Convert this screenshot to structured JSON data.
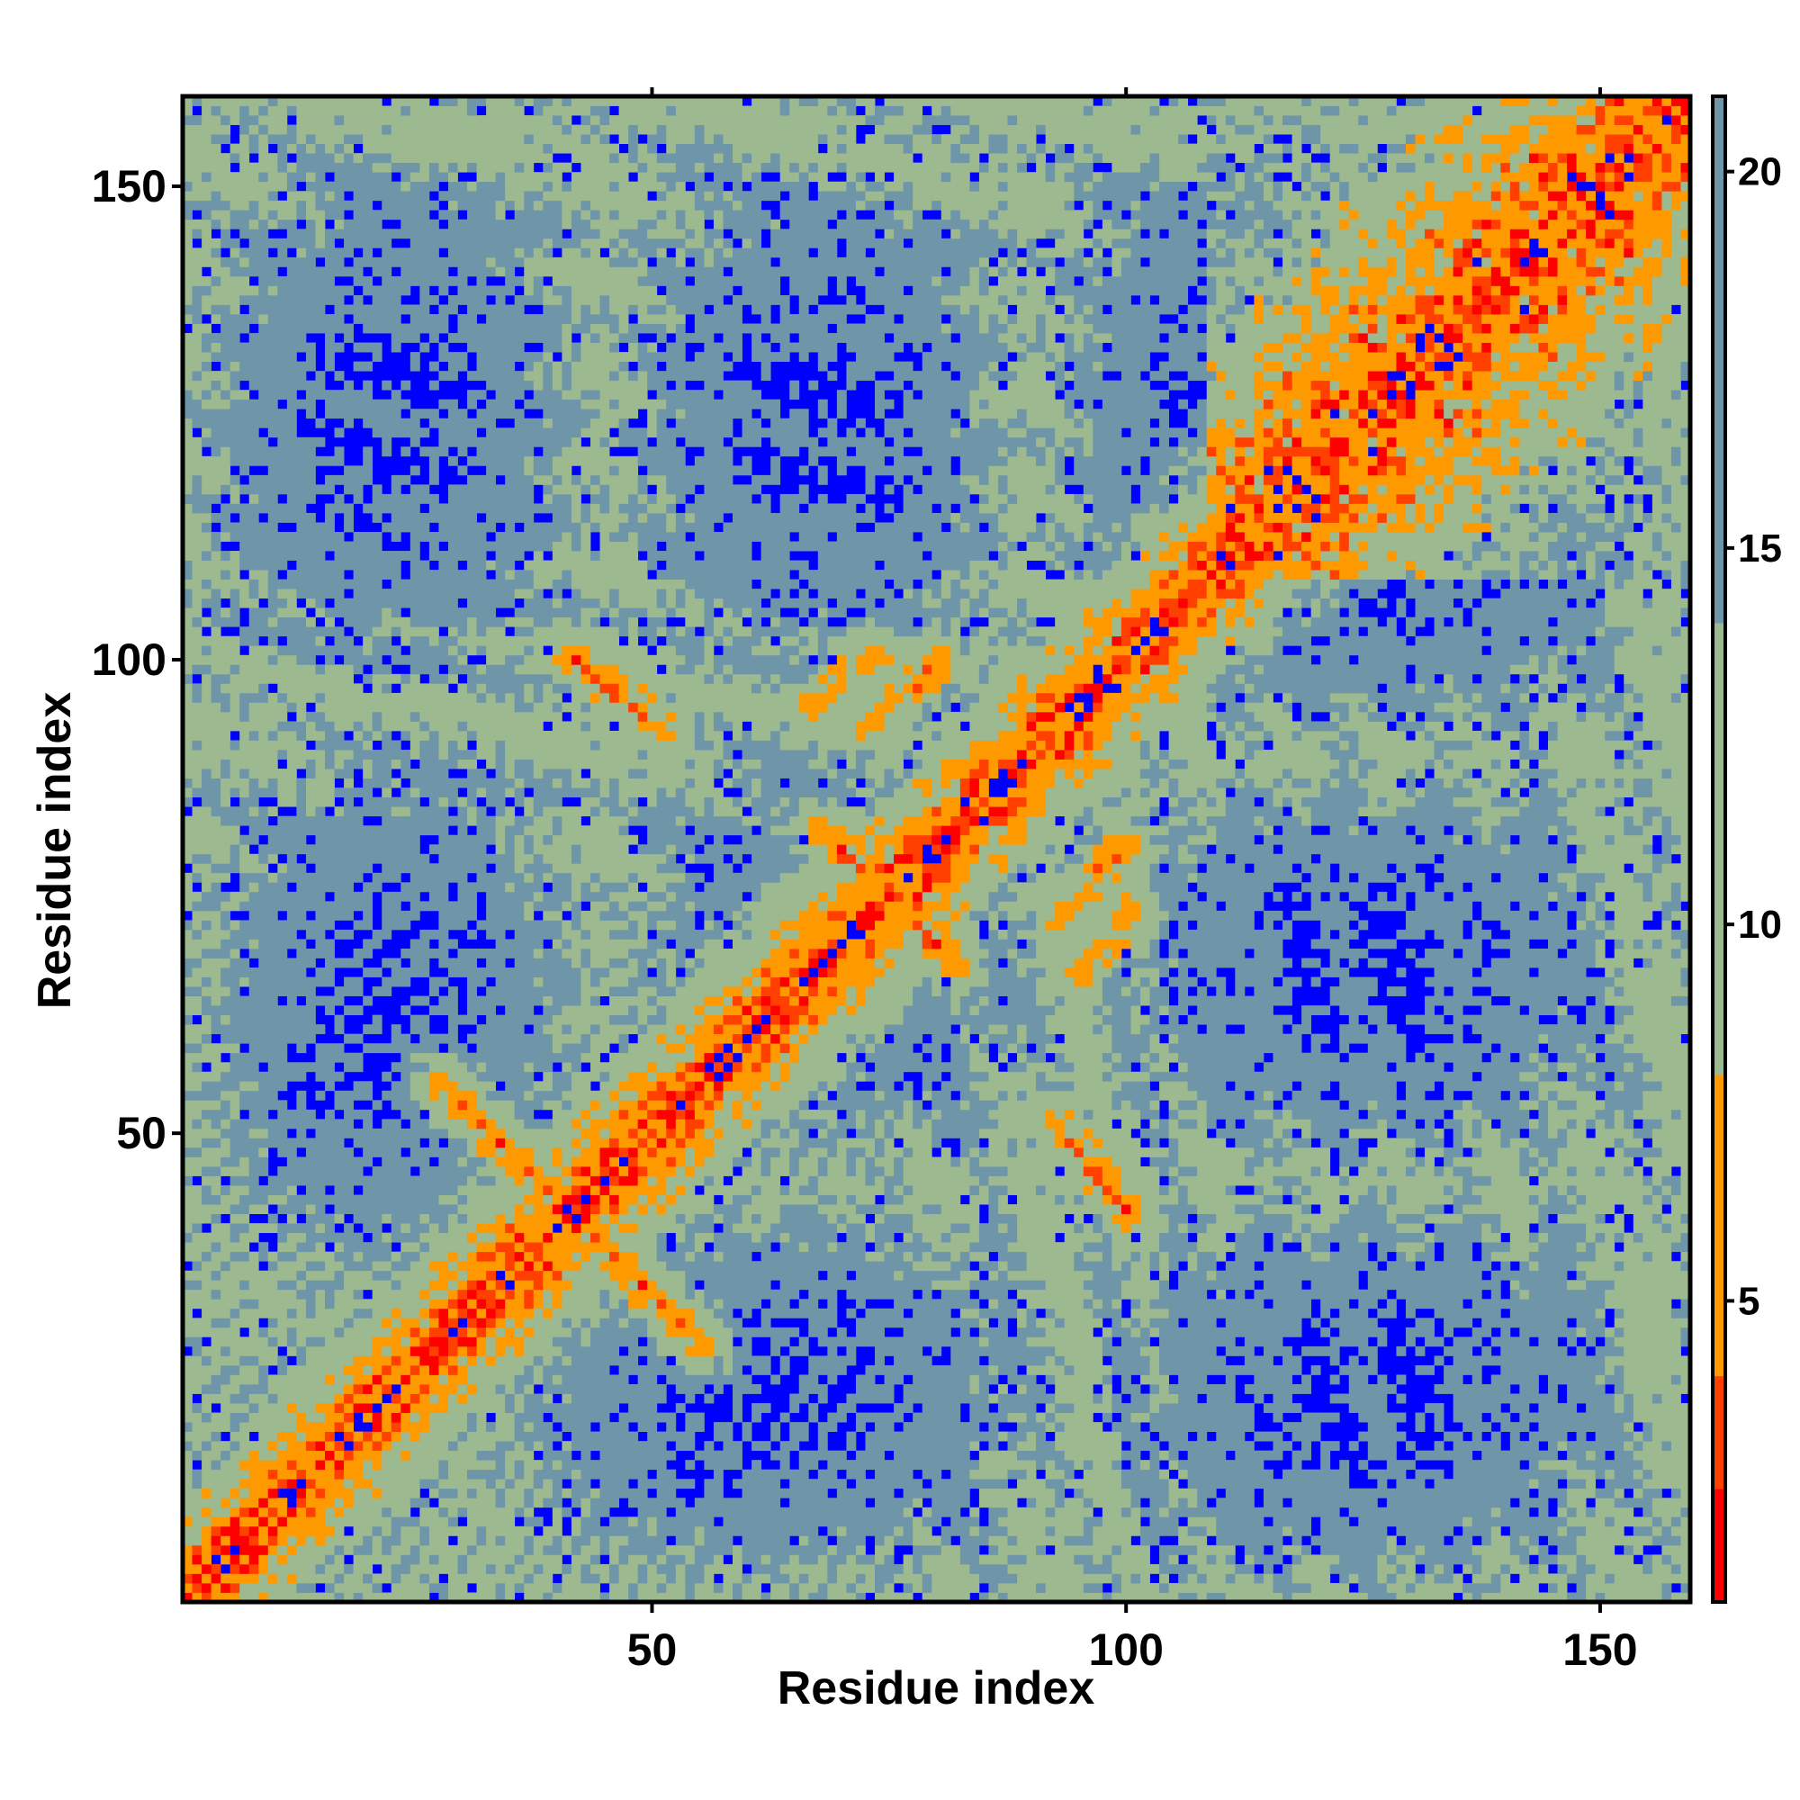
{
  "chart_data": {
    "type": "heatmap",
    "title": "",
    "xlabel": "Residue index",
    "ylabel": "Residue index",
    "n_residues": 159,
    "xlim": [
      1,
      159
    ],
    "ylim": [
      1,
      159
    ],
    "x_ticks": [
      50,
      100,
      150
    ],
    "y_ticks": [
      50,
      100,
      150
    ],
    "colorbar": {
      "range": [
        1,
        21
      ],
      "ticks": [
        5,
        10,
        15,
        20
      ],
      "bands": [
        {
          "from": 1,
          "to": 2.5,
          "color": "#ff0000"
        },
        {
          "from": 2.5,
          "to": 4,
          "color": "#ff4000"
        },
        {
          "from": 4,
          "to": 8,
          "color": "#ff9900"
        },
        {
          "from": 8,
          "to": 14,
          "color": "#9db98f"
        },
        {
          "from": 14,
          "to": 21,
          "color": "#6e95a8"
        },
        {
          "from": 21,
          "to": 99,
          "color": "#0000ff"
        }
      ]
    },
    "background_color": "#0000ff",
    "contact_features": [
      {
        "kind": "diagonal",
        "description": "main diagonal contacts i=j"
      },
      {
        "kind": "antiparallel",
        "center": [
          42,
          42
        ],
        "from": [
          28,
          55
        ],
        "to": [
          55,
          28
        ]
      },
      {
        "kind": "antiparallel",
        "center": [
          74,
          74
        ],
        "from": [
          68,
          82
        ],
        "to": [
          82,
          68
        ]
      },
      {
        "kind": "parallel",
        "from": [
          42,
          100
        ],
        "to": [
          50,
          93
        ]
      },
      {
        "kind": "parallel",
        "from": [
          67,
          95
        ],
        "to": [
          73,
          100
        ]
      },
      {
        "kind": "parallel",
        "from": [
          92,
          52
        ],
        "to": [
          100,
          42
        ]
      },
      {
        "kind": "parallel",
        "from": [
          93,
          73
        ],
        "to": [
          100,
          80
        ]
      },
      {
        "kind": "diffuse",
        "region": "helix bundle 110-158 along diagonal"
      }
    ]
  }
}
